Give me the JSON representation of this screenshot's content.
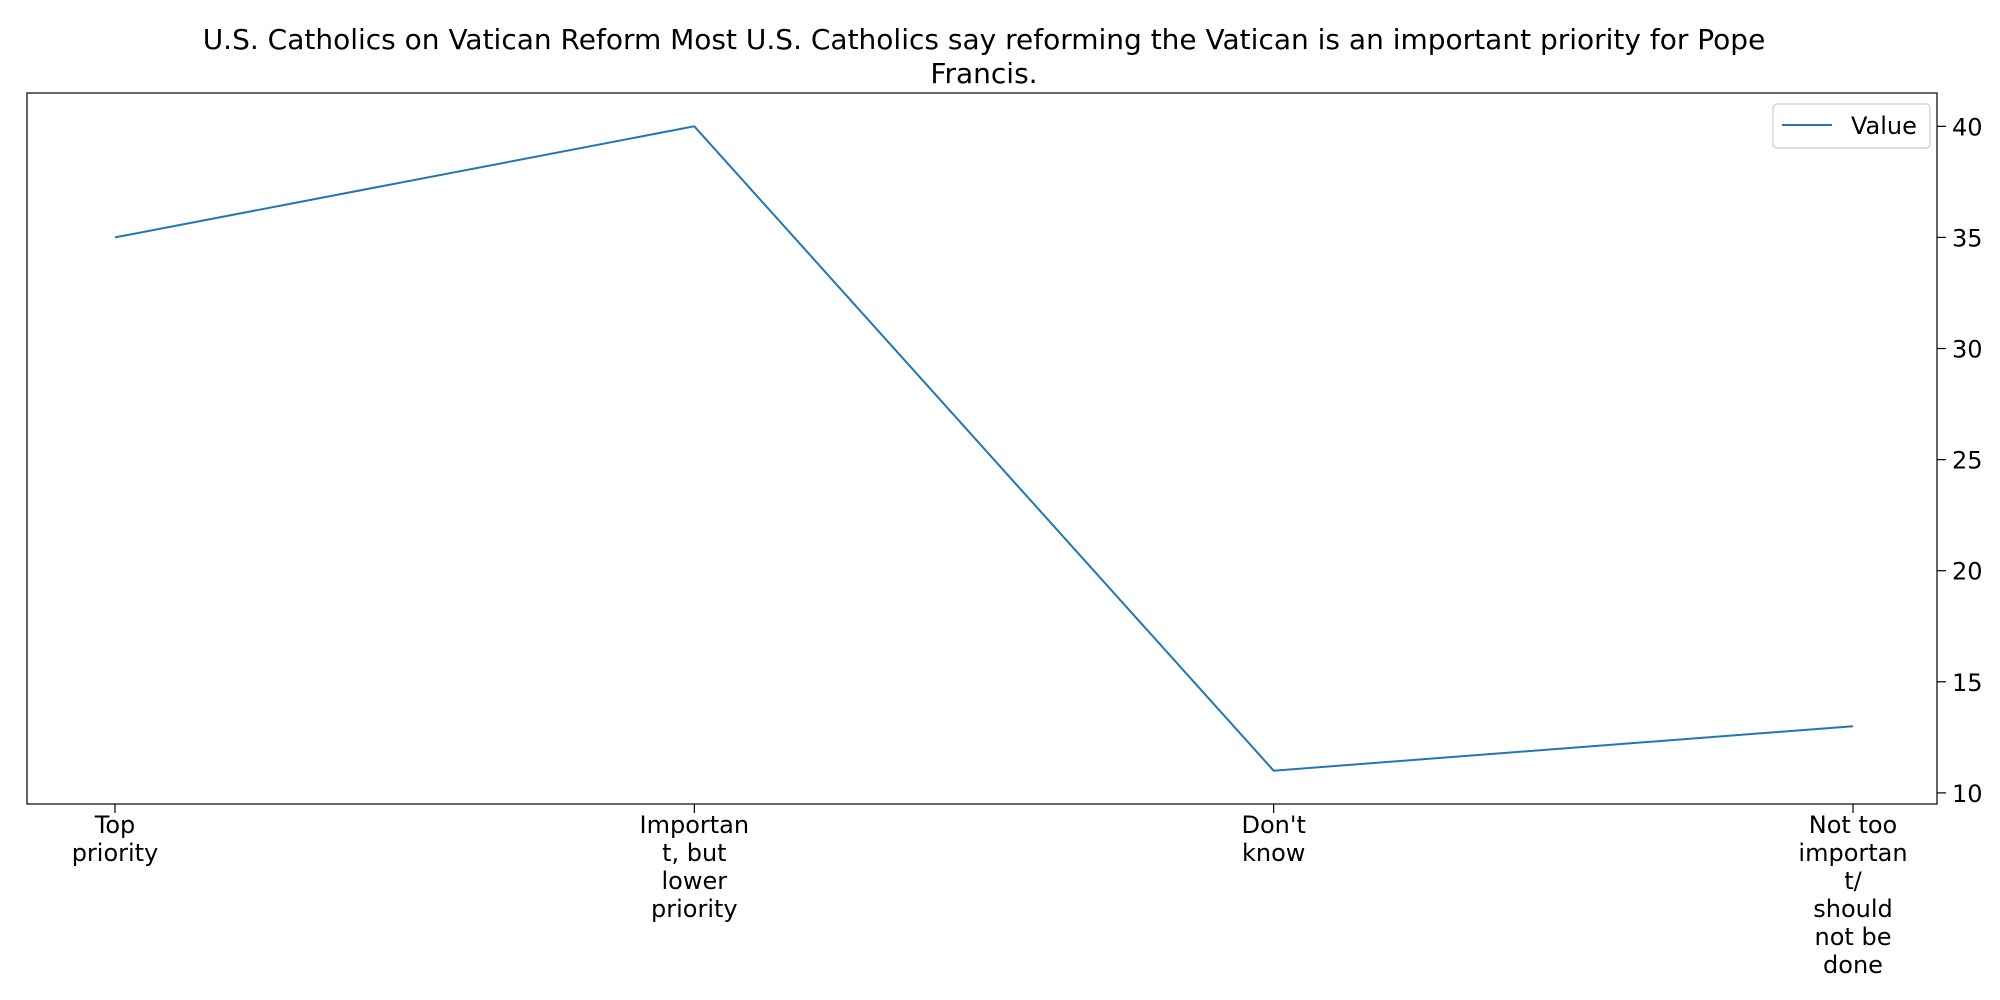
{
  "chart_data": {
    "type": "line",
    "title_lines": [
      "U.S. Catholics on Vatican Reform Most U.S. Catholics say reforming the Vatican is an important priority for Pope",
      "Francis."
    ],
    "categories": [
      [
        "Top",
        "priority"
      ],
      [
        "Importan",
        "t, but",
        "lower",
        "priority"
      ],
      [
        "Don't",
        "know"
      ],
      [
        "Not too",
        "importan",
        "t/",
        "should",
        "not be",
        "done"
      ]
    ],
    "series": [
      {
        "name": "Value",
        "values": [
          35,
          40,
          11,
          13
        ],
        "color": "#1f77b4"
      }
    ],
    "ylim": [
      9.5,
      41.5
    ],
    "yticks": [
      10,
      15,
      20,
      25,
      30,
      35,
      40
    ],
    "y_axis_side": "right",
    "grid": false,
    "legend_position": "top-right",
    "xlabel": "",
    "ylabel": ""
  }
}
